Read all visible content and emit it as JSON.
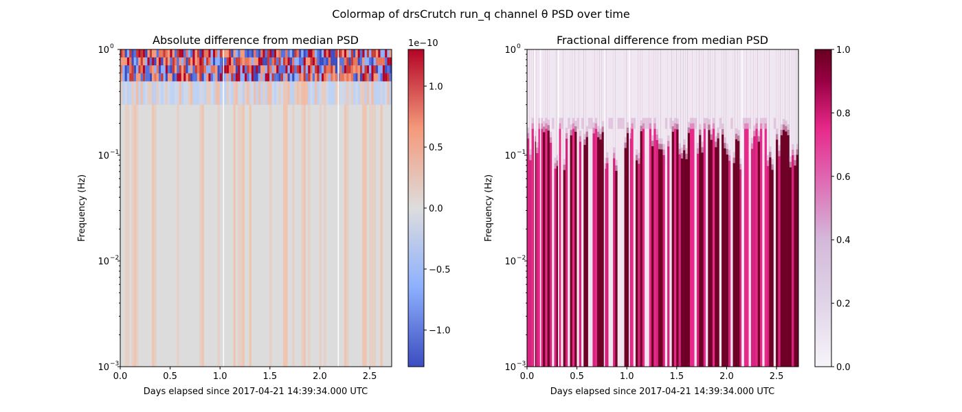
{
  "figure": {
    "suptitle": "Colormap of drsCrutch run_q channel θ PSD over time"
  },
  "chart_data": [
    {
      "type": "heatmap",
      "title": "Absolute difference from median PSD",
      "xlabel": "Days elapsed since 2017-04-21 14:39:34.000 UTC",
      "ylabel": "Frequency (Hz)",
      "xlim": [
        0,
        2.72
      ],
      "ylim": [
        0.001,
        1
      ],
      "yscale": "log",
      "xticks": [
        0.0,
        0.5,
        1.0,
        1.5,
        2.0,
        2.5
      ],
      "xtick_labels": [
        "0.0",
        "0.5",
        "1.0",
        "1.5",
        "2.0",
        "2.5"
      ],
      "ytick_exponents": [
        -3,
        -2,
        -1,
        0
      ],
      "colormap": "coolwarm",
      "colorbar": {
        "range": [
          -1.3,
          1.3
        ],
        "ticks": [
          -1.0,
          -0.5,
          0.0,
          0.5,
          1.0
        ],
        "tick_labels": [
          "−1.0",
          "−0.5",
          "0.0",
          "0.5",
          "1.0"
        ],
        "offset_label": "1e−10",
        "colors": [
          "#3b4cc0",
          "#8db0fe",
          "#dddddd",
          "#f49a7b",
          "#b40426"
        ]
      }
    },
    {
      "type": "heatmap",
      "title": "Fractional difference from median PSD",
      "xlabel": "Days elapsed since 2017-04-21 14:39:34.000 UTC",
      "ylabel": "Frequency (Hz)",
      "xlim": [
        0,
        2.72
      ],
      "ylim": [
        0.001,
        1
      ],
      "yscale": "log",
      "xticks": [
        0.0,
        0.5,
        1.0,
        1.5,
        2.0,
        2.5
      ],
      "xtick_labels": [
        "0.0",
        "0.5",
        "1.0",
        "1.5",
        "2.0",
        "2.5"
      ],
      "ytick_exponents": [
        -3,
        -2,
        -1,
        0
      ],
      "colormap": "PuRd",
      "colorbar": {
        "range": [
          0,
          1
        ],
        "ticks": [
          0.0,
          0.2,
          0.4,
          0.6,
          0.8,
          1.0
        ],
        "tick_labels": [
          "0.0",
          "0.2",
          "0.4",
          "0.6",
          "0.8",
          "1.0"
        ],
        "colors": [
          "#f7f4f9",
          "#d4b9da",
          "#df65b0",
          "#e7298a",
          "#980043",
          "#67001f"
        ]
      }
    }
  ]
}
